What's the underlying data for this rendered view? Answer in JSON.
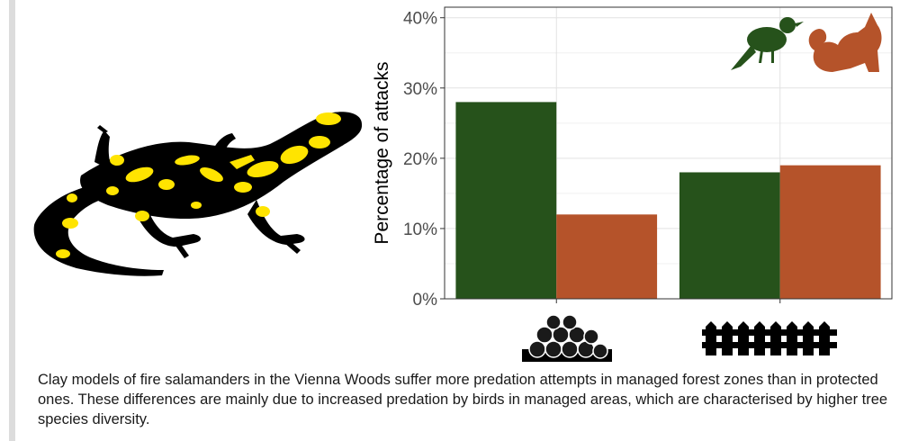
{
  "chart_data": {
    "type": "bar",
    "ylabel": "Percentage of attacks",
    "categories": [
      "managed forest (logs)",
      "protected forest (fence)"
    ],
    "category_icons": [
      "log-pile-icon",
      "fence-icon"
    ],
    "series": [
      {
        "icon": "bird-icon",
        "color": "#26521b",
        "values": [
          28,
          18
        ]
      },
      {
        "icon": "fox-icon",
        "color": "#b5532a",
        "values": [
          12,
          19
        ]
      }
    ],
    "ylim": [
      0,
      41.5
    ],
    "yticks": [
      0,
      10,
      20,
      30,
      40
    ],
    "ytick_labels": [
      "0%",
      "10%",
      "20%",
      "30%",
      "40%"
    ],
    "grid": true,
    "legend": "icons top-right"
  },
  "caption": "Clay models of fire salamanders in the Vienna Woods suffer more predation attempts in managed forest zones than in protected ones. These differences are mainly due to increased predation by birds in managed areas, which are characterised by higher tree species diversity.",
  "colors": {
    "salamander_body": "#000000",
    "salamander_spots": "#ffe400"
  }
}
